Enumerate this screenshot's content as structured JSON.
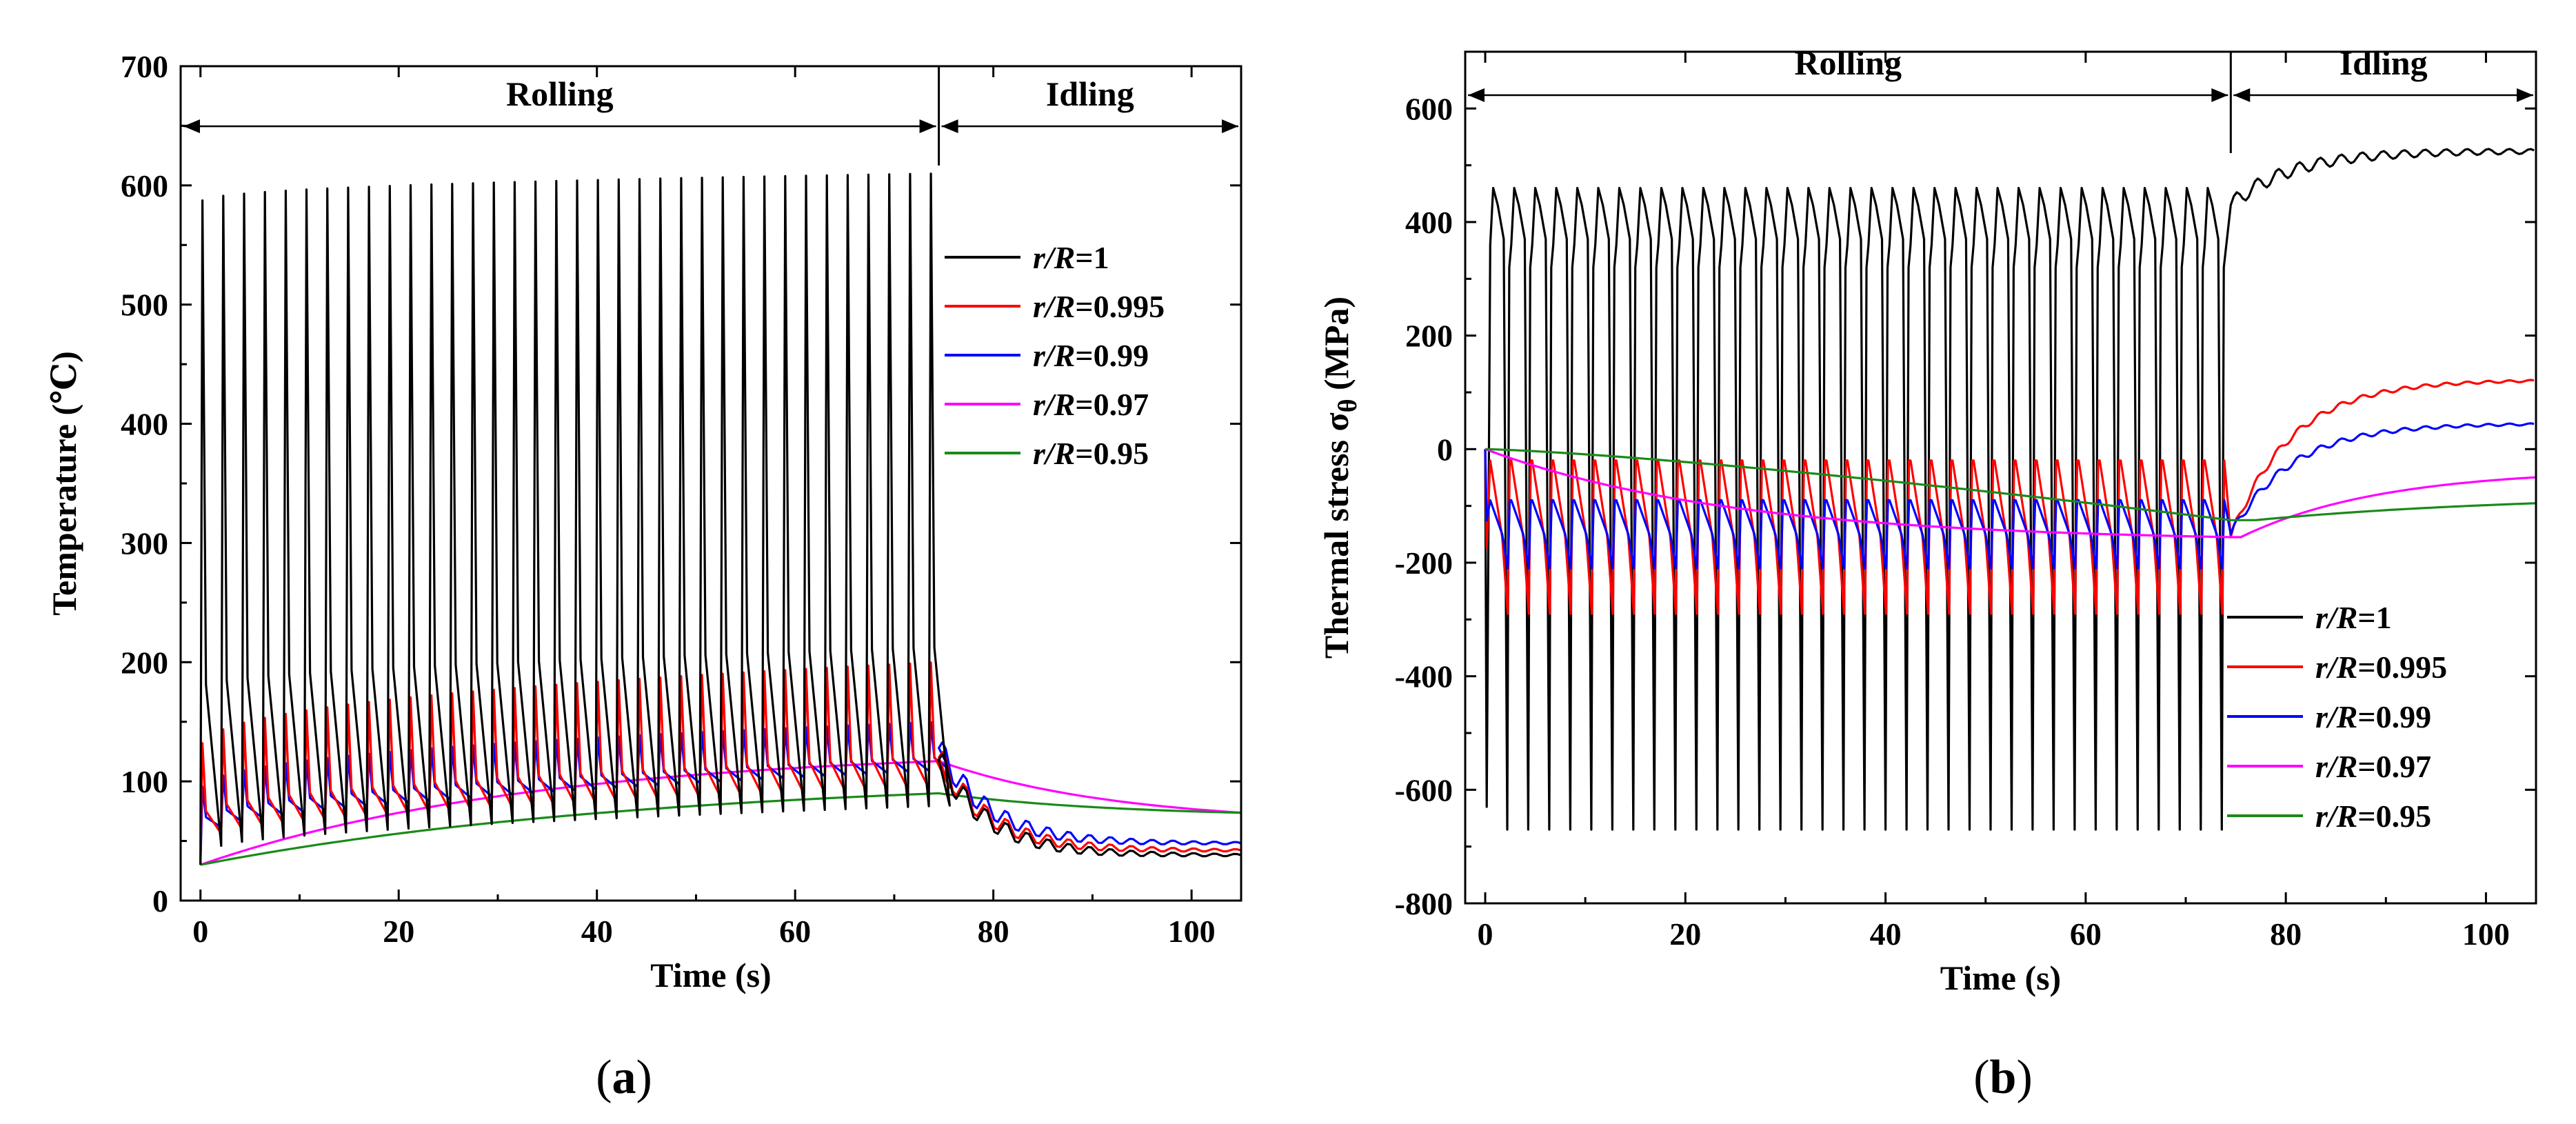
{
  "chart_data": [
    {
      "type": "line",
      "panel_label": "a",
      "title": "",
      "xlabel": "Time (s)",
      "ylabel": "Temperature (℃)",
      "xlim": [
        -2,
        105
      ],
      "ylim": [
        0,
        700
      ],
      "x_ticks": [
        0,
        20,
        40,
        60,
        80,
        100
      ],
      "y_ticks": [
        0,
        100,
        200,
        300,
        400,
        500,
        600,
        700
      ],
      "x_tick_labels": [
        "0",
        "20",
        "40",
        "60",
        "80",
        "100"
      ],
      "y_tick_labels": [
        "0",
        "100",
        "200",
        "300",
        "400",
        "500",
        "600",
        "700"
      ],
      "phases": [
        {
          "name": "Rolling",
          "start": -2,
          "end": 74.5
        },
        {
          "name": "Idling",
          "start": 74.5,
          "end": 105
        }
      ],
      "legend_position": "right",
      "roll_end": 74.5,
      "cycle_period": 2.1,
      "series": [
        {
          "name": "r/R=1",
          "label_italic": "r/R",
          "label_value": "=1",
          "color": "#000000",
          "rolling_base_start": 30,
          "rolling_base_end": 80,
          "peak_start": 585,
          "peak_end": 610,
          "trough_start": 45,
          "trough_end": 80,
          "end_value": 118,
          "idle_final": 38
        },
        {
          "name": "r/R=0.995",
          "label_italic": "r/R",
          "label_value": "=0.995",
          "color": "#ff0000",
          "rolling_base_start": 30,
          "rolling_base_end": 110,
          "peak_start": 125,
          "peak_end": 200,
          "trough_start": 55,
          "trough_end": 95,
          "end_value": 120,
          "idle_final": 42
        },
        {
          "name": "r/R=0.99",
          "label_italic": "r/R",
          "label_value": "=0.99",
          "color": "#0000ff",
          "rolling_base_start": 30,
          "rolling_base_end": 115,
          "peak_start": 90,
          "peak_end": 150,
          "trough_start": 60,
          "trough_end": 110,
          "end_value": 128,
          "idle_final": 48
        },
        {
          "name": "r/R=0.97",
          "label_italic": "r/R",
          "label_value": "=0.97",
          "color": "#ff00ff",
          "start": 30,
          "end_value": 117,
          "idle_final": 64
        },
        {
          "name": "r/R=0.95",
          "label_italic": "r/R",
          "label_value": "=0.95",
          "color": "#1a8a1a",
          "start": 30,
          "end_value": 90,
          "idle_final": 70
        }
      ]
    },
    {
      "type": "line",
      "panel_label": "b",
      "title": "",
      "xlabel": "Time (s)",
      "ylabel": "Thermal stress σ",
      "ylabel_subscript": "θ",
      "ylabel_unit": " (MPa)",
      "xlim": [
        -2,
        105
      ],
      "ylim": [
        -800,
        700
      ],
      "x_ticks": [
        0,
        20,
        40,
        60,
        80,
        100
      ],
      "y_ticks": [
        -800,
        -600,
        -400,
        -200,
        0,
        200,
        400,
        600
      ],
      "x_tick_labels": [
        "0",
        "20",
        "40",
        "60",
        "80",
        "100"
      ],
      "y_tick_labels": [
        "-800",
        "-600",
        "-400",
        "-200",
        "0",
        "200",
        "400",
        "600"
      ],
      "phases": [
        {
          "name": "Rolling",
          "start": -2,
          "end": 74.5
        },
        {
          "name": "Idling",
          "start": 74.5,
          "end": 105
        }
      ],
      "legend_position": "lower-right",
      "roll_end": 74.5,
      "cycle_period": 2.1,
      "series": [
        {
          "name": "r/R=1",
          "label_italic": "r/R",
          "label_value": "=1",
          "color": "#000000",
          "high": 460,
          "low": -670,
          "mid": 360,
          "idle_final": 525
        },
        {
          "name": "r/R=0.995",
          "label_italic": "r/R",
          "label_value": "=0.995",
          "color": "#ff0000",
          "high": -20,
          "low": -290,
          "idle_final": 122
        },
        {
          "name": "r/R=0.99",
          "label_italic": "r/R",
          "label_value": "=0.99",
          "color": "#0000ff",
          "high": -90,
          "low": -210,
          "idle_final": 45
        },
        {
          "name": "r/R=0.97",
          "label_italic": "r/R",
          "label_value": "=0.97",
          "color": "#ff00ff",
          "start": 0,
          "end_value": -155,
          "idle_final": -35
        },
        {
          "name": "r/R=0.95",
          "label_italic": "r/R",
          "label_value": "=0.95",
          "color": "#1a8a1a",
          "start": 0,
          "end_value": -125,
          "idle_final": -78
        }
      ]
    }
  ]
}
